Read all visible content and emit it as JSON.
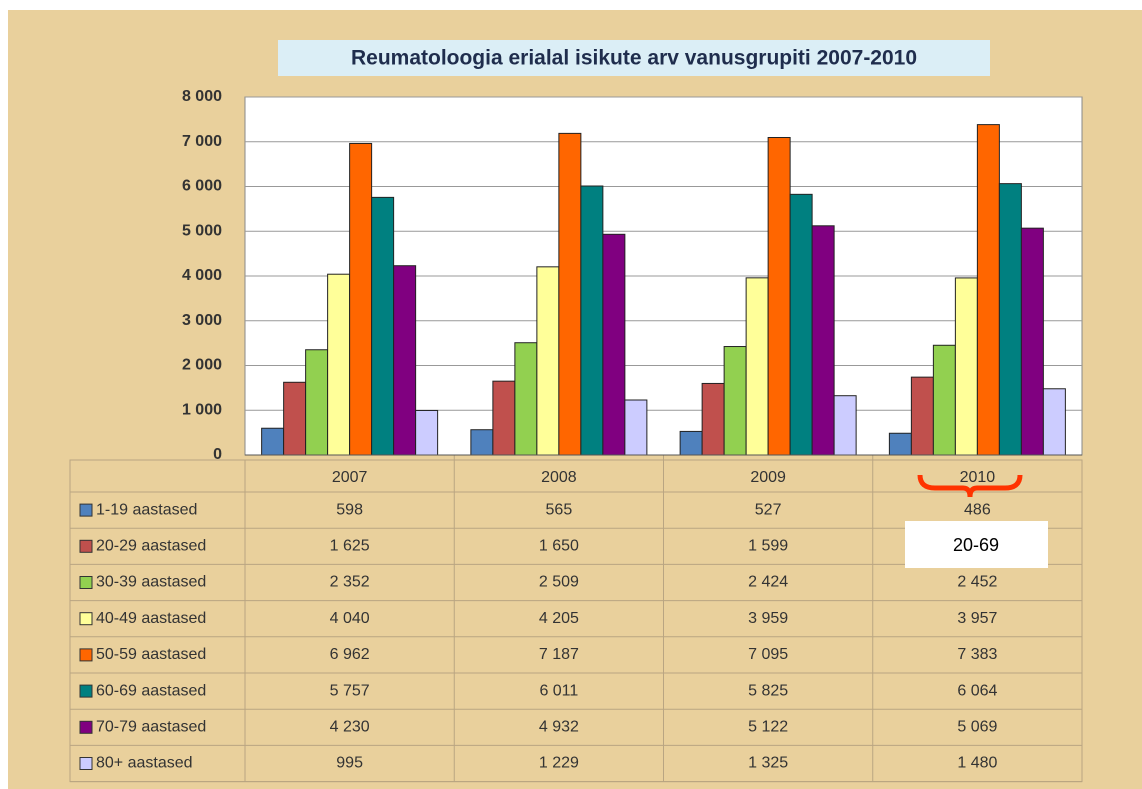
{
  "chart_data": {
    "type": "bar",
    "title": "Reumatoloogia  erialal isikute arv vanusgrupiti  2007-2010",
    "categories": [
      "2007",
      "2008",
      "2009",
      "2010"
    ],
    "ylim": [
      0,
      8000
    ],
    "yticks": [
      0,
      {
        "value": 1000,
        "label": "1 000"
      },
      {
        "value": 2000,
        "label": "2 000"
      },
      {
        "value": 3000,
        "label": "3 000"
      },
      {
        "value": 4000,
        "label": "4 000"
      },
      {
        "value": 5000,
        "label": "5 000"
      },
      {
        "value": 6000,
        "label": "6 000"
      },
      {
        "value": 7000,
        "label": "7 000"
      },
      {
        "value": 8000,
        "label": "8 000"
      }
    ],
    "grid": true,
    "annotation": "20-69",
    "series": [
      {
        "name": "1-19 aastased",
        "color": "#4f81bd",
        "values": [
          598,
          565,
          527,
          486
        ]
      },
      {
        "name": "20-29 aastased",
        "color": "#c0504d",
        "values": [
          1625,
          1650,
          1599,
          1740
        ],
        "value_labels": [
          "1 625",
          "1 650",
          "1 599",
          null
        ]
      },
      {
        "name": "30-39 aastased",
        "color": "#92d050",
        "values": [
          2352,
          2509,
          2424,
          2452
        ],
        "value_labels": [
          "2 352",
          "2 509",
          "2 424",
          "2 452"
        ]
      },
      {
        "name": "40-49 aastased",
        "color": "#ffff99",
        "values": [
          4040,
          4205,
          3959,
          3957
        ],
        "value_labels": [
          "4 040",
          "4 205",
          "3 959",
          "3 957"
        ]
      },
      {
        "name": "50-59 aastased",
        "color": "#ff6600",
        "values": [
          6962,
          7187,
          7095,
          7383
        ],
        "value_labels": [
          "6 962",
          "7 187",
          "7 095",
          "7 383"
        ]
      },
      {
        "name": "60-69 aastased",
        "color": "#008080",
        "values": [
          5757,
          6011,
          5825,
          6064
        ],
        "value_labels": [
          "5 757",
          "6 011",
          "5 825",
          "6 064"
        ]
      },
      {
        "name": "70-79 aastased",
        "color": "#800080",
        "values": [
          4230,
          4932,
          5122,
          5069
        ],
        "value_labels": [
          "4 230",
          "4 932",
          "5 122",
          "5 069"
        ]
      },
      {
        "name": "80+ aastased",
        "color": "#ccccff",
        "values": [
          995,
          1229,
          1325,
          1480
        ],
        "value_labels": [
          "995",
          "1 229",
          "1 325",
          "1 480"
        ]
      }
    ]
  }
}
